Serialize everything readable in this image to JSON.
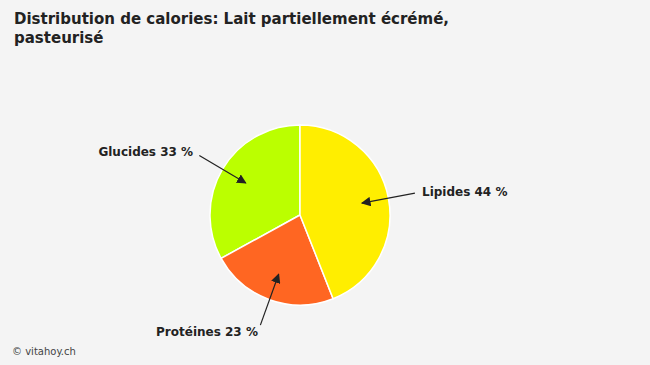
{
  "chart_data": {
    "type": "pie",
    "title": "Distribution de calories: Lait partiellement écrémé,\npasteurisé",
    "categories": [
      "Glucides 33 %",
      "Protéines 23 %",
      "Lipides 44 %"
    ],
    "values": [
      33,
      23,
      44
    ],
    "colors": [
      "#BBFF00",
      "#FF6622",
      "#FFEE00"
    ],
    "annotations": [
      "© vitahoy.ch"
    ]
  }
}
